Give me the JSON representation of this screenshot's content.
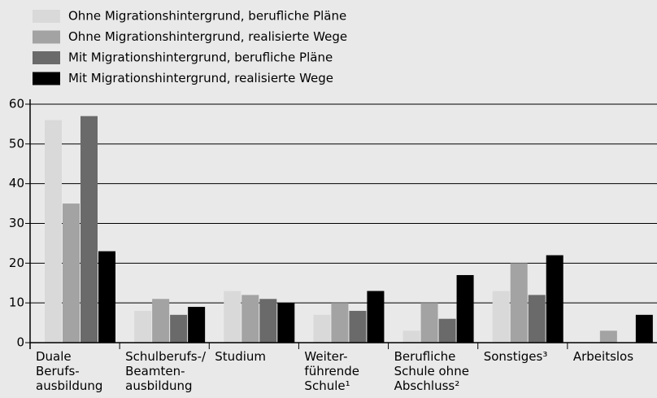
{
  "chart_data": {
    "type": "bar",
    "categories": [
      "Duale\nBerufs-\nausbildung",
      "Schulberufs-/\nBeamten-\nausbildung",
      "Studium",
      "Weiter-\nführende\nSchule¹",
      "Berufliche\nSchule ohne\nAbschluss²",
      "Sonstiges³",
      "Arbeitslos"
    ],
    "series": [
      {
        "name": "Ohne Migrationshintergrund, berufliche Pläne",
        "color": "#d9d9d9",
        "values": [
          56,
          8,
          13,
          7,
          3,
          13,
          0
        ]
      },
      {
        "name": "Ohne Migrationshintergrund, realisierte Wege",
        "color": "#a3a3a3",
        "values": [
          35,
          11,
          12,
          10,
          10,
          20,
          3
        ]
      },
      {
        "name": "Mit Migrationshintergrund, berufliche Pläne",
        "color": "#6a6a6a",
        "values": [
          57,
          7,
          11,
          8,
          6,
          12,
          0
        ]
      },
      {
        "name": "Mit Migrationshintergrund, realisierte Wege",
        "color": "#000000",
        "values": [
          23,
          9,
          10,
          13,
          17,
          22,
          7
        ]
      }
    ],
    "ylim": [
      0,
      60
    ],
    "yticks": [
      0,
      10,
      20,
      30,
      40,
      50,
      60
    ],
    "grid": true,
    "legend": "top-left"
  }
}
